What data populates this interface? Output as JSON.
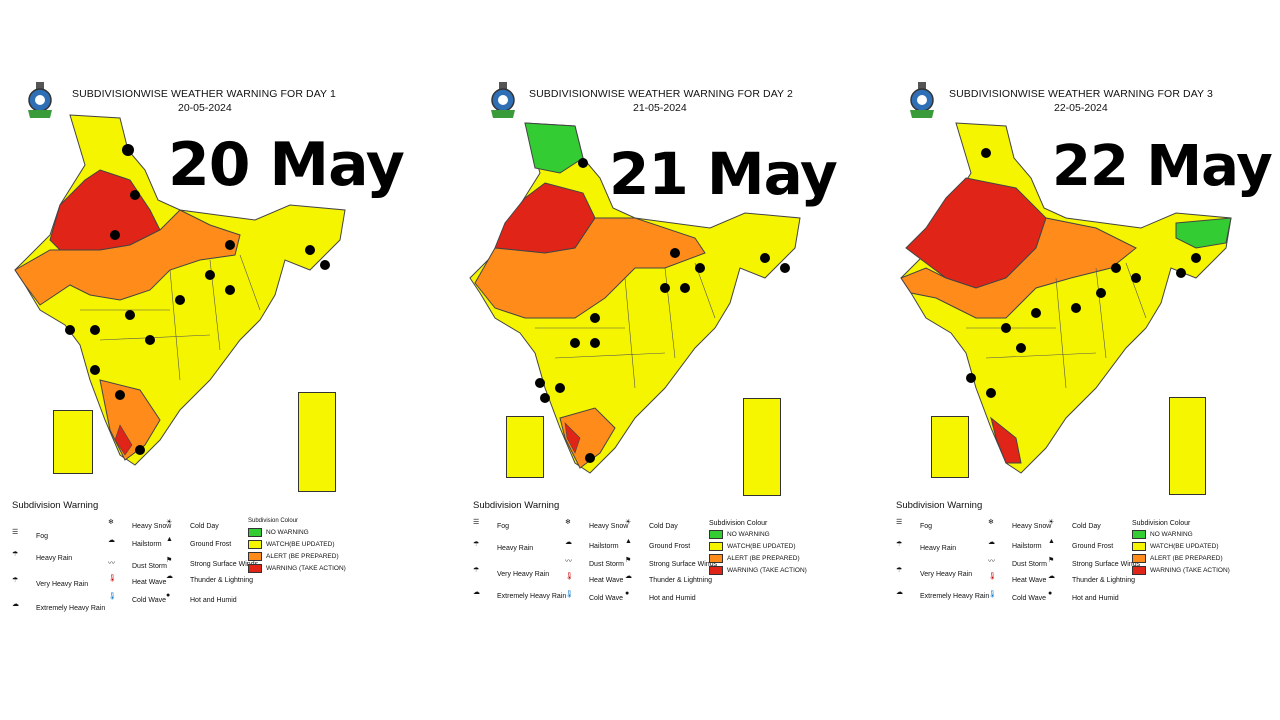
{
  "panels": [
    {
      "title": "SUBDIVISIONWISE WEATHER WARNING FOR DAY 1",
      "date": "20-05-2024",
      "big_date": "20 May"
    },
    {
      "title": "SUBDIVISIONWISE WEATHER WARNING FOR DAY 2",
      "date": "21-05-2024",
      "big_date": "21 May"
    },
    {
      "title": "SUBDIVISIONWISE WEATHER WARNING FOR DAY 3",
      "date": "22-05-2024",
      "big_date": "22 May"
    }
  ],
  "legend": {
    "title": "Subdivision Warning",
    "items": {
      "fog": "Fog",
      "heavy_rain": "Heavy Rain",
      "very_heavy_rain": "Very Heavy Rain",
      "extremely_heavy_rain": "Extremely Heavy Rain",
      "heavy_snow": "Heavy Snow",
      "hailstorm": "Hailstorm",
      "dust_storm": "Dust Storm",
      "heat_wave": "Heat Wave",
      "cold_wave": "Cold Wave",
      "cold_day": "Cold Day",
      "ground_frost": "Ground Frost",
      "strong_winds": "Strong Surface Winds",
      "thunder": "Thunder & Lightning",
      "hot_humid": "Hot and Humid"
    },
    "colour_title": "Subdivision Colour",
    "colours": {
      "no_warning": "NO WARNING",
      "watch": "WATCH(BE UPDATED)",
      "alert": "ALERT (BE PREPARED)",
      "warning": "WARNING (TAKE ACTION)"
    },
    "colours_alt": {
      "watch": "WATCH(BE UPDATED)",
      "alert": "ALERT (BE PREPARED)",
      "warning": "WARNING (TAKE ACTION)"
    }
  },
  "colors": {
    "no_warning": "#33cc33",
    "watch": "#f5f500",
    "alert": "#ff8c1a",
    "warning": "#e02418"
  }
}
